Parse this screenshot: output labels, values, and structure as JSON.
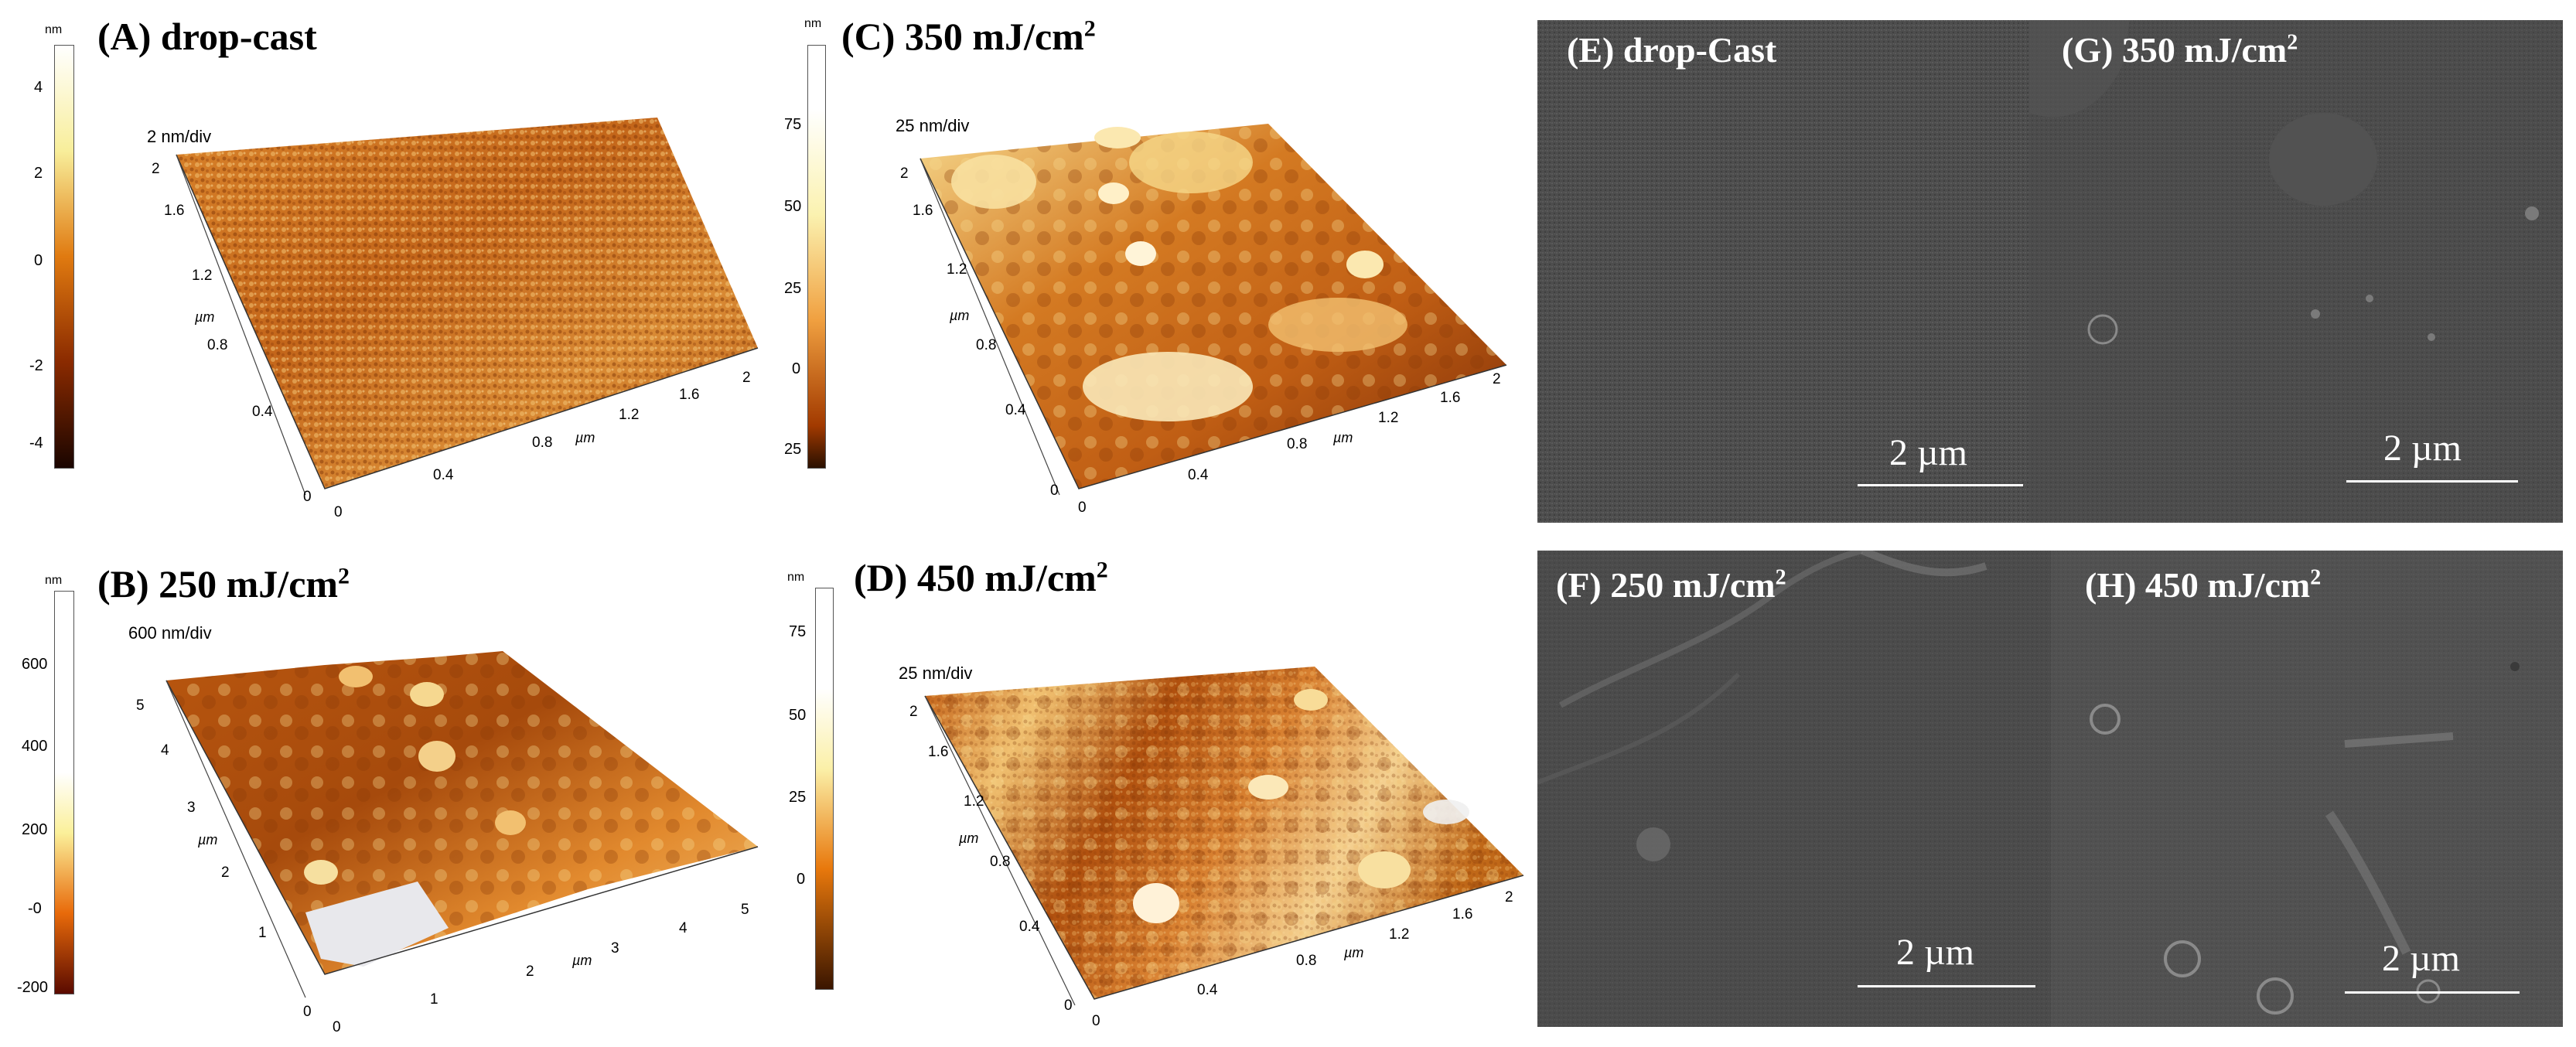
{
  "afm": {
    "A": {
      "label": "(A) drop-cast",
      "div": "2 nm/div",
      "unit": "nm",
      "cb_ticks": [
        "4",
        "2",
        "0",
        "-2",
        "-4"
      ],
      "x_ticks": [
        "0",
        "0.4",
        "0.8",
        "1.2",
        "1.6",
        "2"
      ],
      "y_ticks": [
        "0",
        "0.4",
        "0.8",
        "1.2",
        "1.6",
        "2"
      ],
      "axis_unit": "µm"
    },
    "B": {
      "label": "(B) 250 mJ/cm",
      "sup": "2",
      "div": "600 nm/div",
      "unit": "nm",
      "cb_ticks": [
        "600",
        "400",
        "200",
        "-0",
        "-200"
      ],
      "x_ticks": [
        "0",
        "1",
        "2",
        "3",
        "4",
        "5"
      ],
      "y_ticks": [
        "0",
        "1",
        "2",
        "3",
        "4",
        "5"
      ],
      "axis_unit": "µm"
    },
    "C": {
      "label": "(C) 350 mJ/cm",
      "sup": "2",
      "div": "25 nm/div",
      "unit": "nm",
      "cb_ticks": [
        "75",
        "50",
        "25",
        "0",
        "25"
      ],
      "x_ticks": [
        "0",
        "0.4",
        "0.8",
        "1.2",
        "1.6",
        "2"
      ],
      "y_ticks": [
        "0",
        "0.4",
        "0.8",
        "1.2",
        "1.6",
        "2"
      ],
      "axis_unit": "µm"
    },
    "D": {
      "label": "(D) 450 mJ/cm",
      "sup": "2",
      "div": "25 nm/div",
      "unit": "nm",
      "cb_ticks": [
        "75",
        "50",
        "25",
        "0"
      ],
      "x_ticks": [
        "0",
        "0.4",
        "0.8",
        "1.2",
        "1.6",
        "2"
      ],
      "y_ticks": [
        "0",
        "0.4",
        "0.8",
        "1.2",
        "1.6",
        "2"
      ],
      "axis_unit": "µm"
    }
  },
  "sem": {
    "E": {
      "label": "(E) drop-Cast",
      "scale": "2 µm"
    },
    "G": {
      "label": "(G) 350 mJ/cm",
      "sup": "2",
      "scale": "2 µm"
    },
    "F": {
      "label": "(F) 250 mJ/cm",
      "sup": "2",
      "scale": "2 µm"
    },
    "H": {
      "label": "(H) 450 mJ/cm",
      "sup": "2",
      "scale": "2 µm"
    }
  },
  "colors": {
    "afm_dark": "#5a2400",
    "afm_mid": "#cc6a10",
    "afm_light": "#f7e49a",
    "sem_gray": "#4a4a4a"
  }
}
